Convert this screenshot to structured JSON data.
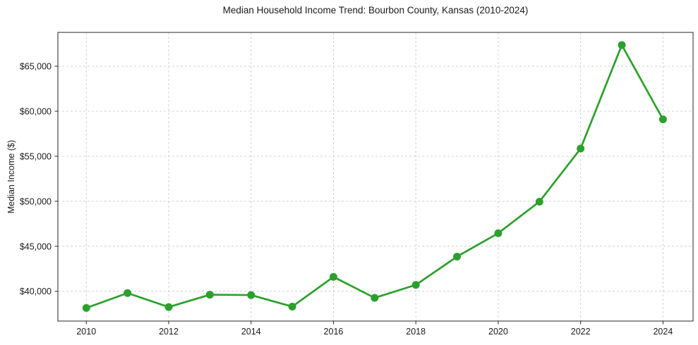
{
  "chart_data": {
    "type": "line",
    "title": "Median Household Income Trend: Bourbon County, Kansas (2010-2024)",
    "xlabel": "",
    "ylabel": "Median Income ($)",
    "x": [
      2010,
      2011,
      2012,
      2013,
      2014,
      2015,
      2016,
      2017,
      2018,
      2019,
      2020,
      2021,
      2022,
      2023,
      2024
    ],
    "values": [
      38150,
      39800,
      38250,
      39620,
      39580,
      38300,
      41600,
      39270,
      40710,
      43850,
      46450,
      49950,
      55850,
      67350,
      59100
    ],
    "xlim": [
      2009.31,
      2024.73
    ],
    "ylim": [
      36693,
      68757
    ],
    "xticks": {
      "values": [
        2010,
        2012,
        2014,
        2016,
        2018,
        2020,
        2022,
        2024
      ],
      "labels": [
        "2010",
        "2012",
        "2014",
        "2016",
        "2018",
        "2020",
        "2022",
        "2024"
      ]
    },
    "yticks": {
      "values": [
        40000,
        45000,
        50000,
        55000,
        60000,
        65000
      ],
      "labels": [
        "$40,000",
        "$45,000",
        "$50,000",
        "$55,000",
        "$60,000",
        "$65,000"
      ]
    },
    "grid": "on",
    "legend": "none",
    "marker": "circle",
    "colors": {
      "line": "#2ca02c",
      "marker": "#2ca02c",
      "grid": "#cccccc",
      "axis": "#262626",
      "text": "#1a1a1a",
      "background": "#ffffff"
    }
  }
}
